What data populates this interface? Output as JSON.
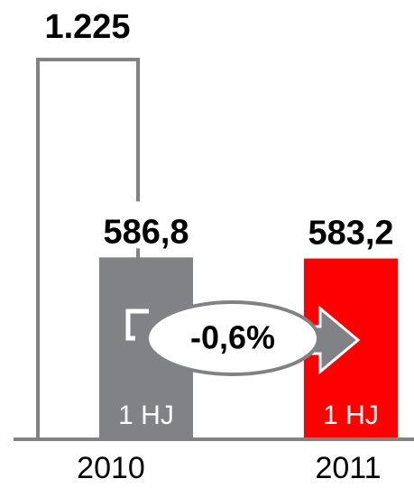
{
  "chart_data": {
    "type": "bar",
    "categories": [
      "2010",
      "2011"
    ],
    "series": [
      {
        "values": [
          1225,
          null
        ],
        "value_labels": [
          "1.225",
          null
        ],
        "color": "#ffffff",
        "stroke": "#808285"
      },
      {
        "name": "1 HJ",
        "values": [
          586.8,
          583.2
        ],
        "value_labels": [
          "586,8",
          "583,2"
        ],
        "colors": [
          "#808285",
          "#ff0000"
        ]
      }
    ],
    "annotation": "-0,6%"
  }
}
